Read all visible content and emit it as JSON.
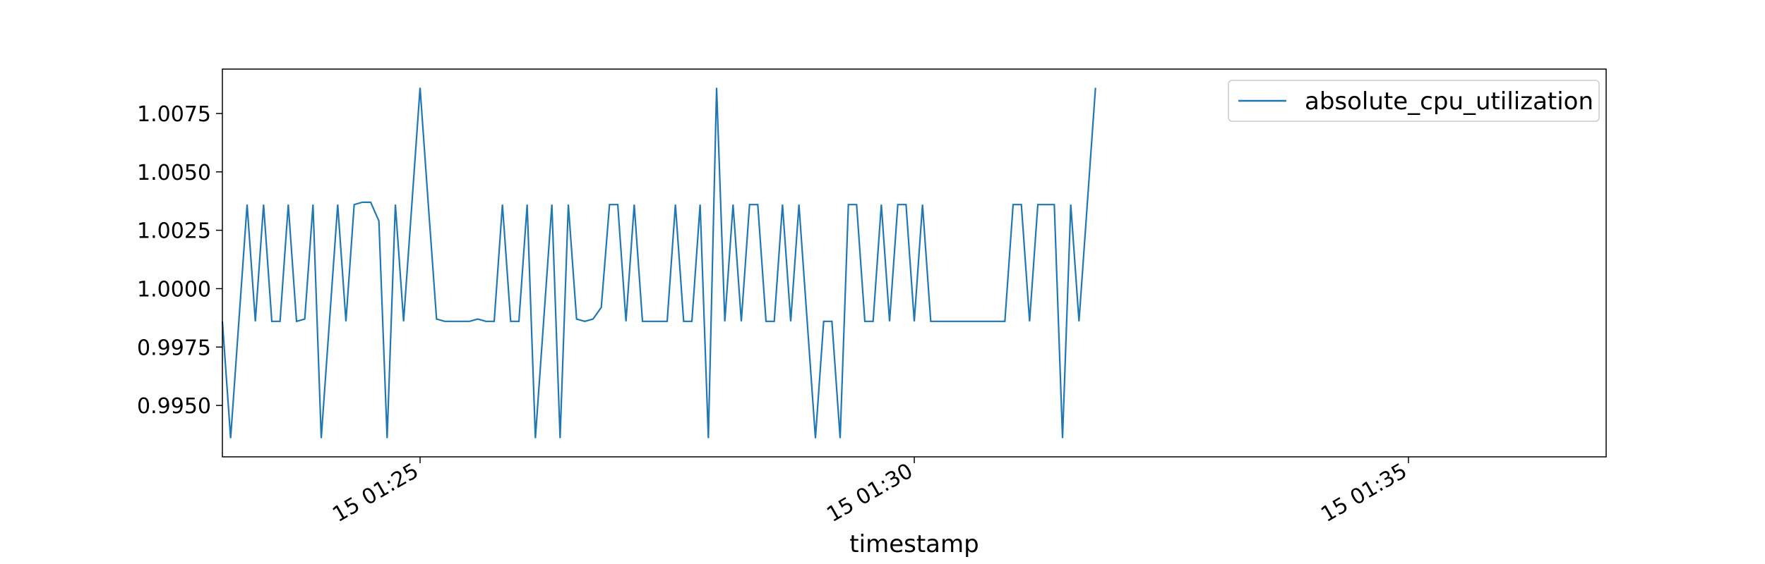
{
  "chart_data": {
    "type": "line",
    "title": "",
    "xlabel": "timestamp",
    "ylabel": "",
    "x_start": "2024-01-15 01:23:00",
    "x_step_seconds": 5,
    "x_min": "2024-01-15 01:23:00",
    "x_max": "2024-01-15 01:37:00",
    "ylim": [
      0.9928,
      1.0094
    ],
    "x_tick_labels": [
      {
        "at": "2024-01-15 01:25:00",
        "label": "15 01:25"
      },
      {
        "at": "2024-01-15 01:30:00",
        "label": "15 01:30"
      },
      {
        "at": "2024-01-15 01:35:00",
        "label": "15 01:35"
      }
    ],
    "y_ticks": [
      0.995,
      0.9975,
      1.0,
      1.0025,
      1.005,
      1.0075
    ],
    "y_tick_labels": [
      "0.9950",
      "0.9975",
      "1.0000",
      "1.0025",
      "1.0050",
      "1.0075"
    ],
    "legend": {
      "position": "top-right"
    },
    "series": [
      {
        "name": "absolute_cpu_utilization",
        "color": "#1f77b4",
        "values": [
          0.9986,
          0.9936,
          0.9986,
          1.0036,
          0.9986,
          1.0036,
          0.9986,
          0.9986,
          1.0036,
          0.9986,
          0.9987,
          1.0036,
          0.9936,
          0.9986,
          1.0036,
          0.9986,
          1.0036,
          1.0037,
          1.0037,
          1.0029,
          0.9936,
          1.0036,
          0.9986,
          1.0036,
          1.0086,
          1.0036,
          0.9987,
          0.9986,
          0.9986,
          0.9986,
          0.9986,
          0.9987,
          0.9986,
          0.9986,
          1.0036,
          0.9986,
          0.9986,
          1.0036,
          0.9936,
          0.9986,
          1.0036,
          0.9936,
          1.0036,
          0.9987,
          0.9986,
          0.9987,
          0.9992,
          1.0036,
          1.0036,
          0.9986,
          1.0036,
          0.9986,
          0.9986,
          0.9986,
          0.9986,
          1.0036,
          0.9986,
          0.9986,
          1.0036,
          0.9936,
          1.0086,
          0.9986,
          1.0036,
          0.9986,
          1.0036,
          1.0036,
          0.9986,
          0.9986,
          1.0036,
          0.9986,
          1.0036,
          0.9986,
          0.9936,
          0.9986,
          0.9986,
          0.9936,
          1.0036,
          1.0036,
          0.9986,
          0.9986,
          1.0036,
          0.9986,
          1.0036,
          1.0036,
          0.9986,
          1.0036,
          0.9986,
          0.9986,
          0.9986,
          0.9986,
          0.9986,
          0.9986,
          0.9986,
          0.9986,
          0.9986,
          0.9986,
          1.0036,
          1.0036,
          0.9986,
          1.0036,
          1.0036,
          1.0036,
          0.9936,
          1.0036,
          0.9986,
          1.0036,
          1.0086
        ]
      }
    ]
  }
}
